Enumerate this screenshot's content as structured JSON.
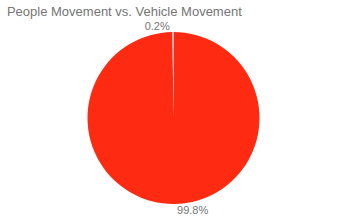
{
  "chart_data": {
    "type": "pie",
    "title": "People Movement vs. Vehicle Movement",
    "values": [
      99.8,
      0.2
    ],
    "value_labels": [
      "99.8%",
      "0.2%"
    ],
    "colors": [
      "#ff2a12",
      "#c9d1e0"
    ],
    "data_labels": true
  }
}
